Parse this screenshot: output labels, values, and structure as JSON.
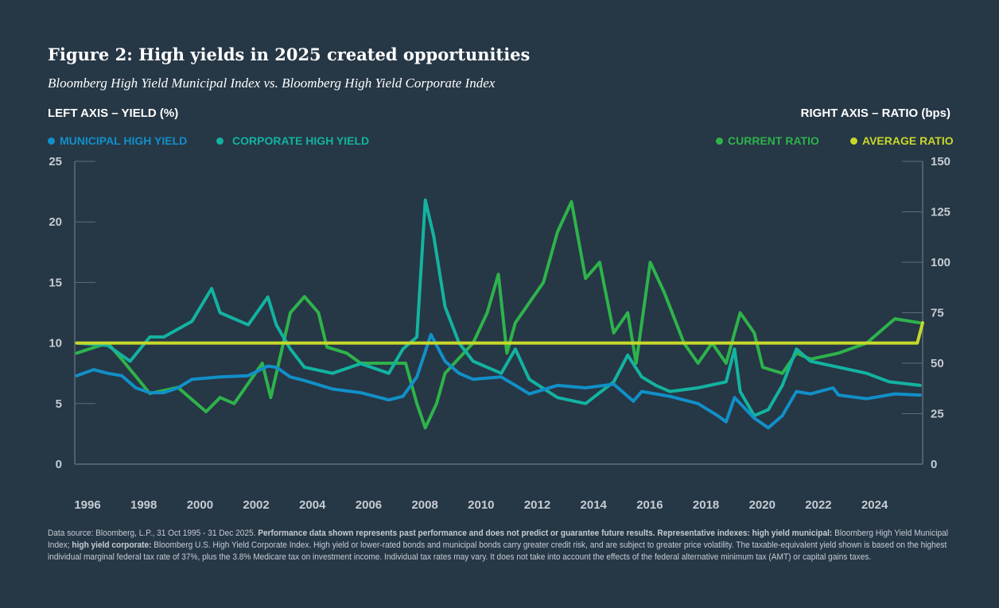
{
  "title": "Figure 2: High yields in 2025 created opportunities",
  "subtitle": "Bloomberg High Yield Municipal Index vs. Bloomberg High Yield Corporate Index",
  "left_axis_label": "LEFT AXIS – YIELD (%)",
  "right_axis_label": "RIGHT AXIS – RATIO (bps)",
  "footnote": {
    "p1": "Data source: Bloomberg, L.P., 31 Oct 1995 - 31 Dec 2025. ",
    "b1": "Performance data shown represents past performance and does not predict or guarantee future results. Representative indexes: high yield municipal:",
    "p2": " Bloomberg High Yield Municipal Index; ",
    "b2": "high yield corporate:",
    "p3": " Bloomberg U.S. High Yield Corporate Index. High yield or lower-rated bonds and municipal bonds carry greater credit risk, and are subject to greater price volatility. The taxable-equivalent yield shown is based on the highest individual marginal federal tax rate of 37%, plus the 3.8% Medicare tax on investment income. Individual tax rates may vary. It does not take into account the effects of the federal alternative minimum tax (AMT) or capital gains taxes."
  },
  "chart_data": {
    "type": "line",
    "xlim": [
      1995.83,
      2025.99
    ],
    "x_ticks": [
      "1996",
      "1998",
      "2000",
      "2002",
      "2004",
      "2006",
      "2008",
      "2010",
      "2012",
      "2014",
      "2016",
      "2018",
      "2020",
      "2022",
      "2024"
    ],
    "y_left": {
      "label": "Yield (%)",
      "range": [
        0,
        25
      ],
      "ticks": [
        "0",
        "5",
        "10",
        "15",
        "20",
        "25"
      ]
    },
    "y_right": {
      "label": "Ratio (bps)",
      "range": [
        0,
        150
      ],
      "ticks": [
        "0",
        "25",
        "50",
        "75",
        "100",
        "125",
        "150"
      ]
    },
    "series": [
      {
        "name": "MUNICIPAL HIGH YIELD",
        "axis": "left",
        "color": "#1190c8",
        "x": [
          1995.9,
          1996.5,
          1997,
          1997.5,
          1998,
          1998.5,
          1999,
          1999.5,
          2000,
          2001,
          2002,
          2002.7,
          2003,
          2003.5,
          2004,
          2005,
          2006,
          2007,
          2007.5,
          2008,
          2008.5,
          2009,
          2009.5,
          2010,
          2011,
          2011.5,
          2012,
          2013,
          2014,
          2015,
          2015.7,
          2016,
          2017,
          2018,
          2018.7,
          2019,
          2019.3,
          2020,
          2020.5,
          2021,
          2021.5,
          2022,
          2022.8,
          2023,
          2024,
          2025,
          2025.9
        ],
        "values": [
          7.3,
          7.8,
          7.5,
          7.3,
          6.3,
          5.9,
          5.9,
          6.3,
          7.0,
          7.2,
          7.3,
          8.1,
          8.0,
          7.2,
          6.9,
          6.2,
          5.9,
          5.3,
          5.6,
          7.2,
          10.7,
          8.5,
          7.5,
          7.0,
          7.2,
          6.5,
          5.8,
          6.5,
          6.3,
          6.6,
          5.2,
          6.0,
          5.6,
          5.0,
          4.0,
          3.5,
          5.5,
          3.8,
          3.0,
          4.0,
          6.0,
          5.8,
          6.3,
          5.7,
          5.4,
          5.8,
          5.7
        ]
      },
      {
        "name": "CORPORATE HIGH YIELD",
        "axis": "left",
        "color": "#13b3a0",
        "x": [
          1995.9,
          1997,
          1997.8,
          1998.5,
          1999,
          2000,
          2000.7,
          2001,
          2002,
          2002.7,
          2003,
          2003.5,
          2004,
          2005,
          2006,
          2007,
          2007.5,
          2008,
          2008.3,
          2008.6,
          2009,
          2009.5,
          2010,
          2011,
          2011.5,
          2012,
          2013,
          2014,
          2015,
          2015.5,
          2016,
          2016.5,
          2017,
          2018,
          2019,
          2019.3,
          2019.5,
          2020,
          2020.5,
          2021,
          2021.5,
          2022,
          2023,
          2024,
          2024.8,
          2025.9
        ],
        "values": [
          10,
          9.8,
          8.5,
          10.5,
          10.5,
          11.8,
          14.5,
          12.5,
          11.5,
          13.8,
          11.5,
          9.5,
          8.0,
          7.5,
          8.3,
          7.5,
          9.5,
          10.5,
          21.8,
          18.8,
          13,
          10,
          8.5,
          7.5,
          9.5,
          7.0,
          5.5,
          5.0,
          6.8,
          9.0,
          7.2,
          6.5,
          6.0,
          6.3,
          6.8,
          9.5,
          6.0,
          4.0,
          4.5,
          6.5,
          9.5,
          8.5,
          8.0,
          7.5,
          6.8,
          6.5
        ]
      },
      {
        "name": "CURRENT RATIO",
        "axis": "right",
        "color": "#2eb34b",
        "x": [
          1995.9,
          1997,
          1997.5,
          1998.5,
          1999.5,
          2000.5,
          2001,
          2001.5,
          2002.5,
          2002.8,
          2003.5,
          2004,
          2004.5,
          2004.8,
          2005.5,
          2006,
          2007,
          2007.6,
          2008,
          2008.3,
          2008.7,
          2009,
          2010,
          2010.5,
          2010.9,
          2011.2,
          2011.5,
          2012,
          2012.5,
          2013,
          2013.5,
          2014,
          2014.5,
          2015,
          2015.5,
          2015.8,
          2016.3,
          2016.8,
          2017.5,
          2018,
          2018.5,
          2019,
          2019.5,
          2020,
          2020.3,
          2021,
          2021.5,
          2022,
          2023,
          2024,
          2025,
          2025.9
        ],
        "values": [
          55,
          60,
          52,
          35,
          38,
          26,
          33,
          30,
          50,
          33,
          75,
          83,
          75,
          58,
          55,
          50,
          50,
          50,
          30,
          18,
          30,
          45,
          60,
          75,
          94,
          55,
          70,
          80,
          90,
          115,
          130,
          92,
          100,
          65,
          75,
          50,
          100,
          85,
          60,
          50,
          60,
          50,
          75,
          65,
          48,
          45,
          55,
          52,
          55,
          60,
          72,
          70
        ]
      },
      {
        "name": "AVERAGE RATIO",
        "axis": "right",
        "color": "#c8d82b",
        "x": [
          1995.9,
          2025.8,
          2025.99
        ],
        "values": [
          60,
          60,
          70
        ]
      }
    ]
  }
}
